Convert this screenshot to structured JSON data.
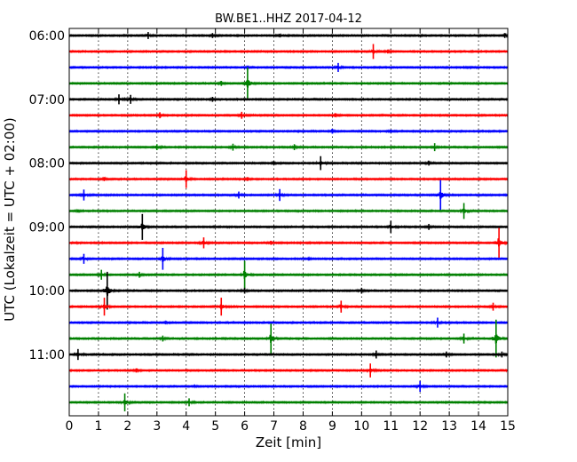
{
  "chart_data": {
    "type": "line",
    "title": "BW.BE1..HHZ 2017-04-12",
    "xlabel": "Zeit  [min]",
    "ylabel": "UTC (Lokalzeit = UTC + 02:00)",
    "xlim": [
      0,
      15
    ],
    "x_ticks": [
      "0",
      "1",
      "2",
      "3",
      "4",
      "5",
      "6",
      "7",
      "8",
      "9",
      "10",
      "11",
      "12",
      "13",
      "14",
      "15"
    ],
    "y_tick_labels": [
      {
        "label": "06:00",
        "trace_index": 0
      },
      {
        "label": "07:00",
        "trace_index": 4
      },
      {
        "label": "08:00",
        "trace_index": 8
      },
      {
        "label": "09:00",
        "trace_index": 12
      },
      {
        "label": "10:00",
        "trace_index": 16
      },
      {
        "label": "11:00",
        "trace_index": 20
      }
    ],
    "grid": "vertical dotted at each minute",
    "traces": [
      {
        "start_utc": "06:00",
        "color": "#000000",
        "events": [
          {
            "t": 2.7,
            "amp": 0.35
          },
          {
            "t": 4.9,
            "amp": 0.25
          },
          {
            "t": 7.2,
            "amp": 0.15
          },
          {
            "t": 14.9,
            "amp": 0.25
          }
        ]
      },
      {
        "start_utc": "06:15",
        "color": "#ff0000",
        "events": [
          {
            "t": 10.4,
            "amp": 0.75
          },
          {
            "t": 10.9,
            "amp": 0.2
          }
        ]
      },
      {
        "start_utc": "06:30",
        "color": "#0000ff",
        "events": [
          {
            "t": 9.2,
            "amp": 0.45
          },
          {
            "t": 6.1,
            "amp": 0.15
          },
          {
            "t": 13.6,
            "amp": 0.1
          }
        ]
      },
      {
        "start_utc": "06:45",
        "color": "#008000",
        "events": [
          {
            "t": 6.1,
            "amp": 1.6
          },
          {
            "t": 5.2,
            "amp": 0.25
          }
        ]
      },
      {
        "start_utc": "07:00",
        "color": "#000000",
        "events": [
          {
            "t": 1.7,
            "amp": 0.5
          },
          {
            "t": 2.1,
            "amp": 0.45
          },
          {
            "t": 4.9,
            "amp": 0.25
          }
        ]
      },
      {
        "start_utc": "07:15",
        "color": "#ff0000",
        "events": [
          {
            "t": 3.1,
            "amp": 0.3
          },
          {
            "t": 5.9,
            "amp": 0.35
          },
          {
            "t": 9.1,
            "amp": 0.2
          }
        ]
      },
      {
        "start_utc": "07:30",
        "color": "#0000ff",
        "events": [
          {
            "t": 9.0,
            "amp": 0.25
          },
          {
            "t": 11.0,
            "amp": 0.15
          }
        ]
      },
      {
        "start_utc": "07:45",
        "color": "#008000",
        "events": [
          {
            "t": 3.0,
            "amp": 0.3
          },
          {
            "t": 5.6,
            "amp": 0.35
          },
          {
            "t": 7.7,
            "amp": 0.3
          },
          {
            "t": 12.5,
            "amp": 0.4
          }
        ]
      },
      {
        "start_utc": "08:00",
        "color": "#000000",
        "events": [
          {
            "t": 8.6,
            "amp": 0.7
          },
          {
            "t": 7.0,
            "amp": 0.2
          },
          {
            "t": 12.3,
            "amp": 0.25
          }
        ]
      },
      {
        "start_utc": "08:15",
        "color": "#ff0000",
        "events": [
          {
            "t": 4.0,
            "amp": 0.9
          },
          {
            "t": 1.2,
            "amp": 0.2
          },
          {
            "t": 6.1,
            "amp": 0.2
          }
        ]
      },
      {
        "start_utc": "08:30",
        "color": "#0000ff",
        "events": [
          {
            "t": 0.5,
            "amp": 0.55
          },
          {
            "t": 5.8,
            "amp": 0.35
          },
          {
            "t": 7.2,
            "amp": 0.6
          },
          {
            "t": 12.7,
            "amp": 1.5
          }
        ]
      },
      {
        "start_utc": "08:45",
        "color": "#008000",
        "events": [
          {
            "t": 13.5,
            "amp": 0.8
          },
          {
            "t": 0.3,
            "amp": 0.15
          }
        ]
      },
      {
        "start_utc": "09:00",
        "color": "#000000",
        "events": [
          {
            "t": 2.5,
            "amp": 1.3
          },
          {
            "t": 11.0,
            "amp": 0.6
          },
          {
            "t": 12.3,
            "amp": 0.3
          }
        ]
      },
      {
        "start_utc": "09:15",
        "color": "#ff0000",
        "events": [
          {
            "t": 14.7,
            "amp": 1.5
          },
          {
            "t": 4.6,
            "amp": 0.55
          },
          {
            "t": 6.9,
            "amp": 0.2
          }
        ]
      },
      {
        "start_utc": "09:30",
        "color": "#0000ff",
        "events": [
          {
            "t": 3.2,
            "amp": 1.1
          },
          {
            "t": 0.5,
            "amp": 0.5
          },
          {
            "t": 8.2,
            "amp": 0.15
          }
        ]
      },
      {
        "start_utc": "09:45",
        "color": "#008000",
        "events": [
          {
            "t": 6.0,
            "amp": 1.4
          },
          {
            "t": 1.1,
            "amp": 0.5
          },
          {
            "t": 2.4,
            "amp": 0.3
          }
        ]
      },
      {
        "start_utc": "10:00",
        "color": "#000000",
        "events": [
          {
            "t": 1.3,
            "amp": 1.9
          },
          {
            "t": 6.0,
            "amp": 0.3
          },
          {
            "t": 10.0,
            "amp": 0.3
          }
        ]
      },
      {
        "start_utc": "10:15",
        "color": "#ff0000",
        "events": [
          {
            "t": 1.2,
            "amp": 0.9
          },
          {
            "t": 5.2,
            "amp": 0.9
          },
          {
            "t": 9.3,
            "amp": 0.6
          },
          {
            "t": 14.5,
            "amp": 0.4
          }
        ]
      },
      {
        "start_utc": "10:30",
        "color": "#0000ff",
        "events": [
          {
            "t": 12.6,
            "amp": 0.5
          },
          {
            "t": 3.3,
            "amp": 0.15
          }
        ]
      },
      {
        "start_utc": "10:45",
        "color": "#008000",
        "events": [
          {
            "t": 6.9,
            "amp": 1.5
          },
          {
            "t": 14.6,
            "amp": 1.9
          },
          {
            "t": 13.5,
            "amp": 0.5
          },
          {
            "t": 3.2,
            "amp": 0.3
          }
        ]
      },
      {
        "start_utc": "11:00",
        "color": "#000000",
        "events": [
          {
            "t": 0.3,
            "amp": 0.55
          },
          {
            "t": 10.5,
            "amp": 0.4
          },
          {
            "t": 12.9,
            "amp": 0.3
          },
          {
            "t": 14.8,
            "amp": 0.3
          }
        ]
      },
      {
        "start_utc": "11:15",
        "color": "#ff0000",
        "events": [
          {
            "t": 10.3,
            "amp": 0.7
          },
          {
            "t": 2.3,
            "amp": 0.2
          }
        ]
      },
      {
        "start_utc": "11:30",
        "color": "#0000ff",
        "events": [
          {
            "t": 12.0,
            "amp": 0.55
          },
          {
            "t": 4.3,
            "amp": 0.1
          }
        ]
      },
      {
        "start_utc": "11:45",
        "color": "#008000",
        "events": [
          {
            "t": 1.9,
            "amp": 0.9
          },
          {
            "t": 4.1,
            "amp": 0.4
          }
        ]
      }
    ]
  }
}
